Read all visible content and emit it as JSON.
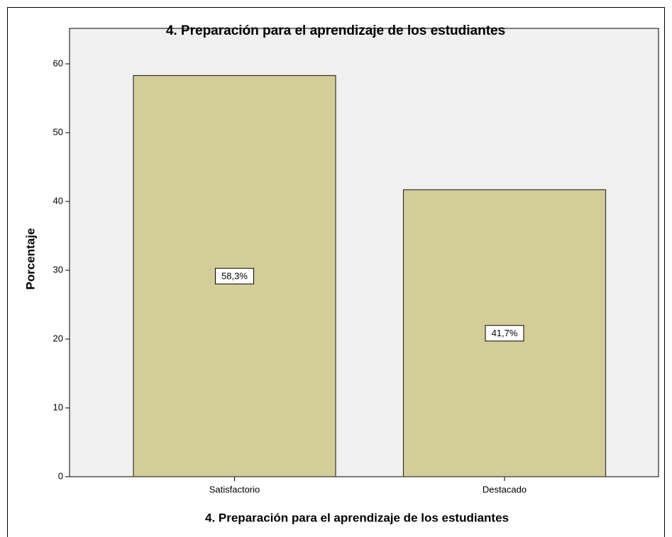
{
  "chart_data": {
    "type": "bar",
    "title": "4. Preparación para el aprendizaje de los estudiantes",
    "x_label": "4. Preparación para el aprendizaje de los estudiantes",
    "y_label": "Porcentaje",
    "categories": [
      "Satisfactorio",
      "Destacado"
    ],
    "values": [
      58.3,
      41.7
    ],
    "value_labels": [
      "58,3%",
      "41,7%"
    ],
    "color": "#d3ce97",
    "ylim": [
      0,
      65
    ],
    "yticks": [
      0,
      10,
      20,
      30,
      40,
      50,
      60
    ]
  }
}
